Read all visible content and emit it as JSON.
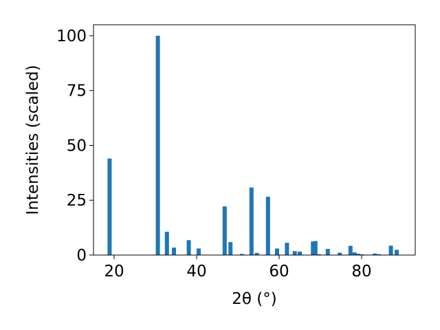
{
  "chart_data": {
    "type": "bar",
    "xlabel": "2θ (°)",
    "ylabel": "Intensities (scaled)",
    "xlim": [
      15,
      93
    ],
    "ylim": [
      0,
      105
    ],
    "x_ticks": [
      20,
      40,
      60,
      80
    ],
    "y_ticks": [
      0,
      25,
      50,
      75,
      100
    ],
    "grid": false,
    "bar_color": "#1f77b4",
    "x": [
      18.9,
      30.6,
      32.8,
      34.5,
      38.1,
      40.5,
      46.8,
      48.2,
      51.0,
      53.3,
      54.6,
      57.3,
      59.5,
      61.9,
      63.8,
      65.0,
      68.2,
      68.8,
      69.6,
      71.8,
      74.7,
      77.3,
      78.3,
      79.2,
      80.2,
      83.2,
      84.2,
      87.1,
      88.5
    ],
    "values": [
      44.0,
      100.0,
      10.6,
      3.4,
      6.8,
      3.0,
      22.2,
      5.9,
      0.5,
      30.8,
      1.0,
      26.6,
      3.0,
      5.6,
      1.8,
      1.6,
      6.2,
      6.4,
      0.4,
      2.8,
      1.1,
      4.2,
      1.2,
      0.6,
      0.3,
      0.7,
      0.4,
      4.3,
      2.4
    ]
  }
}
